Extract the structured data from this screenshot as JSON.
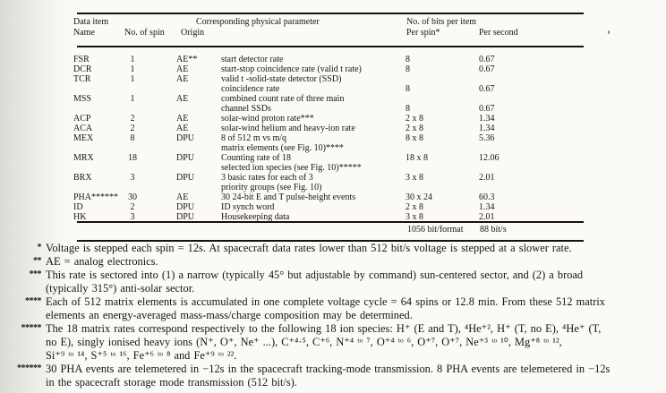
{
  "table": {
    "headers": {
      "data_item_line1": "Data item",
      "data_item_line2": "Name",
      "no_of_spin": "No. of spin",
      "origin": "Origin",
      "physical_parameter": "Corresponding physical parameter",
      "bits_group": "No. of bits per item",
      "per_spin": "Per spin*",
      "per_second": "Per second"
    },
    "rows": [
      {
        "name": "FSR",
        "spins": "1",
        "origin": "AE**",
        "param": "start detector rate",
        "per_spin": "8",
        "per_second": "0.67"
      },
      {
        "name": "DCR",
        "spins": "1",
        "origin": "AE",
        "param": "start-stop coincidence rate (valid t rate)",
        "per_spin": "8",
        "per_second": "0.67"
      },
      {
        "name": "TCR",
        "spins": "1",
        "origin": "AE",
        "param": "valid t -solid-state detector (SSD)",
        "per_spin": "",
        "per_second": ""
      },
      {
        "name": "",
        "spins": "",
        "origin": "",
        "param": "coincidence rate",
        "per_spin": "8",
        "per_second": "0.67"
      },
      {
        "name": "MSS",
        "spins": "1",
        "origin": "AE",
        "param": "combined count rate of three main",
        "per_spin": "",
        "per_second": ""
      },
      {
        "name": "",
        "spins": "",
        "origin": "",
        "param": "channel SSDs",
        "per_spin": "8",
        "per_second": "0.67"
      },
      {
        "name": "ACP",
        "spins": "2",
        "origin": "AE",
        "param": "solar-wind proton rate***",
        "per_spin": "2 x 8",
        "per_second": "1.34"
      },
      {
        "name": "ACA",
        "spins": "2",
        "origin": "AE",
        "param": "solar-wind helium and heavy-ion rate",
        "per_spin": "2 x 8",
        "per_second": "1.34"
      },
      {
        "name": "MEX",
        "spins": "8",
        "origin": "DPU",
        "param": "8 of 512 m vs m/q",
        "per_spin": "8 x 8",
        "per_second": "5.36"
      },
      {
        "name": "",
        "spins": "",
        "origin": "",
        "param": "matrix elements (see Fig. 10)****",
        "per_spin": "",
        "per_second": ""
      },
      {
        "name": "MRX",
        "spins": "18",
        "origin": "DPU",
        "param": "Counting rate of 18",
        "per_spin": "18 x 8",
        "per_second": "12.06"
      },
      {
        "name": "",
        "spins": "",
        "origin": "",
        "param": "selected ion species (see Fig. 10)*****",
        "per_spin": "",
        "per_second": ""
      },
      {
        "name": "BRX",
        "spins": "3",
        "origin": "DPU",
        "param": "3 basic rates for each of 3",
        "per_spin": "3 x 8",
        "per_second": "2.01"
      },
      {
        "name": "",
        "spins": "",
        "origin": "",
        "param": "priority groups (see Fig. 10)",
        "per_spin": "",
        "per_second": ""
      },
      {
        "name": "PHA******",
        "spins": "30",
        "origin": "AE",
        "param": "30 24-bit E and T pulse-height events",
        "per_spin": "30 x 24",
        "per_second": "60.3"
      },
      {
        "name": "ID",
        "spins": "2",
        "origin": "DPU",
        "param": "ID synch word",
        "per_spin": "2 x 8",
        "per_second": "1.34"
      },
      {
        "name": "HK",
        "spins": "3",
        "origin": "DPU",
        "param": "Housekeeping data",
        "per_spin": "3 x 8",
        "per_second": "2.01"
      }
    ],
    "totals": {
      "per_spin": "1056 bit/format",
      "per_second": "88 bit/s"
    }
  },
  "footnote_lines": [
    {
      "marker": "*",
      "text": "Voltage is stepped each spin = 12s. At spacecraft data rates lower than 512 bit/s voltage is stepped at a slower rate."
    },
    {
      "marker": "**",
      "text": "AE = analog electronics."
    },
    {
      "marker": "***",
      "text": "This rate is sectored into (1) a narrow (typically 45° but adjustable by command) sun-centered sector, and (2) a broad"
    },
    {
      "marker": "",
      "text": "(typically 315°) anti-solar sector."
    },
    {
      "marker": "****",
      "text": "Each of 512 matrix elements is accumulated in one complete voltage cycle = 64 spins or 12.8 min. From these 512 matrix"
    },
    {
      "marker": "",
      "text": "elements an energy-averaged mass-mass/charge composition may be determined."
    },
    {
      "marker": "*****",
      "text": "The 18 matrix rates correspond respectively to the following 18 ion species: H⁺ (E and T), ⁴He⁺², H⁺ (T, no E), ⁴He⁺ (T,"
    },
    {
      "marker": "",
      "text": "no E), singly ionised heavy ions (N⁺, O⁺, Ne⁺ ...), C⁺⁴·⁵, C⁺⁶, N⁺⁴ ᵗᵒ ⁷, O⁺⁴ ᵗᵒ ⁶, O⁺⁷, O⁺⁷, Ne⁺³ ᵗᵒ ¹⁰, Mg⁺⁸ ᵗᵒ ¹²,"
    },
    {
      "marker": "",
      "text": "Si⁺⁹ ᵗᵒ ¹⁴, S⁺⁵ ᵗᵒ ¹⁶, Fe⁺⁶ ᵗᵒ ⁸ and Fe⁺⁹ ᵗᵒ ²²."
    },
    {
      "marker": "******",
      "text": "30 PHA events are telemetered in −12s in the spacecraft tracking-mode transmission. 8 PHA events are telemetered in −12s"
    },
    {
      "marker": "",
      "text": "in the spacecraft storage mode transmission (512 bit/s)."
    }
  ]
}
